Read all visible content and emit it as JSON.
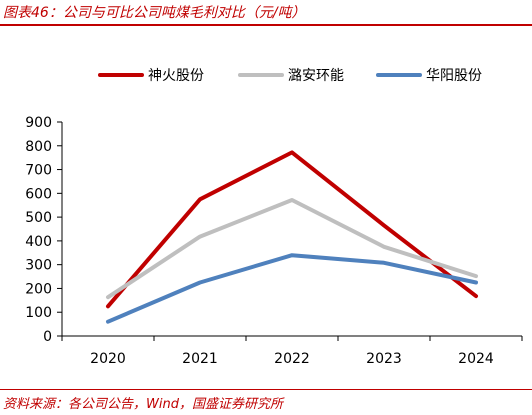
{
  "header": {
    "title": "图表46：公司与可比公司吨煤毛利对比（元/吨）"
  },
  "footer": {
    "source": "资料来源：各公司公告，Wind，国盛证券研究所"
  },
  "colors": {
    "accent": "#c00000",
    "series": [
      "#c00000",
      "#bfbfbf",
      "#4f81bd"
    ]
  },
  "chart_data": {
    "type": "line",
    "title": "公司与可比公司吨煤毛利对比（元/吨）",
    "xlabel": "",
    "ylabel": "",
    "x": [
      "2020",
      "2021",
      "2022",
      "2023",
      "2024"
    ],
    "ylim": [
      0,
      900
    ],
    "yticks": [
      0,
      100,
      200,
      300,
      400,
      500,
      600,
      700,
      800,
      900
    ],
    "grid": false,
    "legend_position": "top",
    "series": [
      {
        "name": "神火股份",
        "values": [
          125,
          575,
          772,
          465,
          168
        ]
      },
      {
        "name": "潞安环能",
        "values": [
          163,
          418,
          572,
          375,
          252
        ]
      },
      {
        "name": "华阳股份",
        "values": [
          60,
          225,
          340,
          308,
          225
        ]
      }
    ]
  }
}
